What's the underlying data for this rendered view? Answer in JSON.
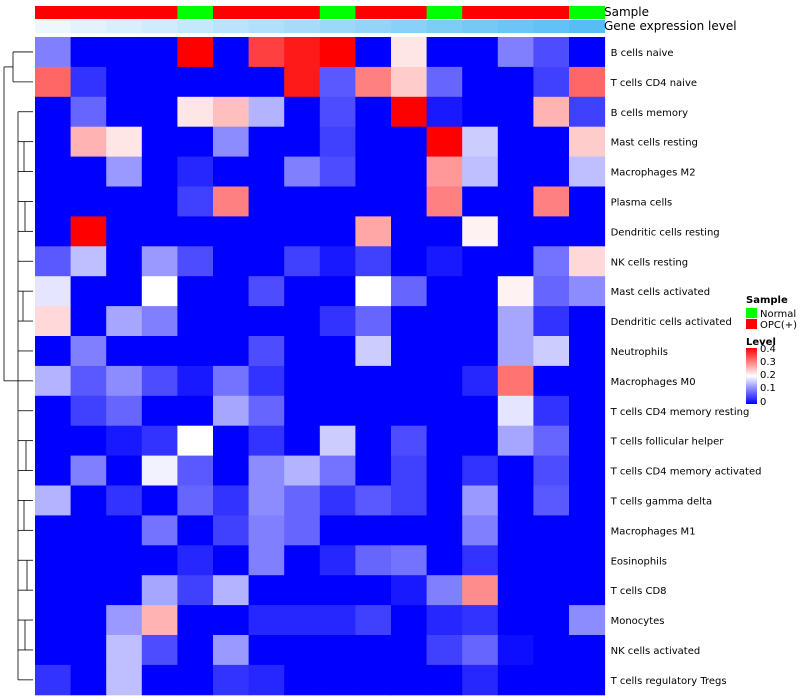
{
  "chart_data": {
    "type": "heatmap",
    "annotation_tracks": [
      {
        "name": "Sample",
        "values": [
          "OPC(+)",
          "OPC(+)",
          "OPC(+)",
          "OPC(+)",
          "Normal",
          "OPC(+)",
          "OPC(+)",
          "OPC(+)",
          "Normal",
          "OPC(+)",
          "OPC(+)",
          "Normal",
          "OPC(+)",
          "OPC(+)",
          "OPC(+)",
          "Normal"
        ]
      },
      {
        "name": "Gene expression level",
        "values": [
          0.02,
          0.04,
          0.06,
          0.08,
          0.1,
          0.12,
          0.14,
          0.16,
          0.18,
          0.2,
          0.22,
          0.24,
          0.26,
          0.28,
          0.3,
          0.32
        ]
      }
    ],
    "rows": [
      "B cells naive",
      "T cells CD4 naive",
      "B cells memory",
      "Mast cells resting",
      "Macrophages M2",
      "Plasma cells",
      "Dendritic cells resting",
      "NK cells resting",
      "Mast cells activated",
      "Dendritic cells activated",
      "Neutrophils",
      "Macrophages M0",
      "T cells CD4 memory resting",
      "T cells follicular helper",
      "T cells CD4 memory activated",
      "T cells gamma delta",
      "Macrophages M1",
      "Eosinophils",
      "T cells CD8",
      "Monocytes",
      "NK cells activated",
      "T cells regulatory  Tregs"
    ],
    "values": [
      [
        0.1,
        0,
        0,
        0,
        0.4,
        0,
        0.35,
        0.38,
        0.4,
        0,
        0.22,
        0,
        0,
        0.1,
        0.06,
        0
      ],
      [
        0.32,
        0.04,
        0,
        0,
        0,
        0,
        0,
        0.38,
        0.07,
        0.3,
        0.24,
        0.08,
        0,
        0,
        0.05,
        0.32
      ],
      [
        0,
        0.08,
        0,
        0,
        0.22,
        0.25,
        0.14,
        0,
        0.06,
        0,
        0.4,
        0.02,
        0,
        0,
        0.26,
        0.05
      ],
      [
        0,
        0.26,
        0.22,
        0,
        0,
        0.11,
        0,
        0,
        0.05,
        0,
        0,
        0.4,
        0.16,
        0,
        0,
        0.24
      ],
      [
        0,
        0,
        0.12,
        0,
        0.03,
        0,
        0,
        0.1,
        0.06,
        0,
        0,
        0.28,
        0.15,
        0,
        0,
        0.15
      ],
      [
        0,
        0,
        0,
        0,
        0.05,
        0.3,
        0,
        0,
        0,
        0,
        0,
        0.3,
        0,
        0,
        0.3,
        0
      ],
      [
        0,
        0.4,
        0,
        0,
        0,
        0,
        0,
        0,
        0,
        0.27,
        0,
        0,
        0.21,
        0,
        0,
        0
      ],
      [
        0.07,
        0.15,
        0,
        0.12,
        0.06,
        0,
        0,
        0.05,
        0.02,
        0.05,
        0,
        0.02,
        0,
        0,
        0.09,
        0.23
      ],
      [
        0.18,
        0,
        0,
        0.2,
        0,
        0,
        0.06,
        0,
        0,
        0.2,
        0.08,
        0,
        0,
        0.21,
        0.08,
        0.11
      ],
      [
        0.23,
        0,
        0.13,
        0.1,
        0,
        0,
        0,
        0,
        0.04,
        0.08,
        0,
        0,
        0,
        0.13,
        0.04,
        0
      ],
      [
        0,
        0.1,
        0,
        0,
        0,
        0,
        0.06,
        0,
        0,
        0.16,
        0,
        0,
        0,
        0.13,
        0.16,
        0
      ],
      [
        0.14,
        0.07,
        0.11,
        0.06,
        0.02,
        0.09,
        0.04,
        0,
        0,
        0,
        0,
        0,
        0.03,
        0.31,
        0,
        0
      ],
      [
        0,
        0.05,
        0.08,
        0,
        0,
        0.13,
        0.08,
        0,
        0,
        0,
        0,
        0,
        0,
        0.18,
        0.04,
        0
      ],
      [
        0,
        0,
        0.02,
        0.04,
        0.2,
        0,
        0.04,
        0,
        0.16,
        0,
        0.06,
        0,
        0,
        0.13,
        0.08,
        0
      ],
      [
        0,
        0.1,
        0,
        0.19,
        0.07,
        0,
        0.11,
        0.14,
        0.09,
        0,
        0.05,
        0,
        0.04,
        0,
        0.06,
        0
      ],
      [
        0.14,
        0,
        0.04,
        0,
        0.08,
        0.04,
        0.11,
        0.08,
        0.04,
        0.07,
        0.05,
        0,
        0.12,
        0,
        0.07,
        0
      ],
      [
        0,
        0,
        0,
        0.09,
        0,
        0.05,
        0.1,
        0.08,
        0,
        0,
        0,
        0,
        0.1,
        0,
        0,
        0
      ],
      [
        0,
        0,
        0,
        0,
        0.03,
        0,
        0.1,
        0,
        0.03,
        0.08,
        0.09,
        0,
        0.04,
        0,
        0,
        0
      ],
      [
        0,
        0,
        0,
        0.13,
        0.05,
        0.14,
        0,
        0,
        0,
        0,
        0.02,
        0.1,
        0.29,
        0,
        0,
        0
      ],
      [
        0,
        0,
        0.12,
        0.26,
        0,
        0,
        0.03,
        0.03,
        0.03,
        0.05,
        0,
        0.03,
        0.04,
        0,
        0,
        0.11
      ],
      [
        0,
        0,
        0.15,
        0.06,
        0,
        0.12,
        0,
        0,
        0,
        0,
        0,
        0.05,
        0.08,
        0.01,
        0,
        0
      ],
      [
        0.04,
        0,
        0.15,
        0,
        0,
        0.04,
        0.03,
        0,
        0,
        0,
        0,
        0,
        0.03,
        0,
        0,
        0
      ]
    ],
    "color_scale": {
      "min": 0,
      "max": 0.4,
      "low": "#0000ff",
      "mid": "#ffffff",
      "high": "#ff0000"
    },
    "legends": {
      "sample": {
        "title": "Sample",
        "entries": [
          {
            "label": "Normal",
            "color": "#00ff00"
          },
          {
            "label": "OPC(+)",
            "color": "#ff0000"
          }
        ]
      },
      "level": {
        "title": "Level",
        "ticks": [
          "0.4",
          "0.3",
          "0.2",
          "0.1",
          "0"
        ]
      }
    }
  }
}
